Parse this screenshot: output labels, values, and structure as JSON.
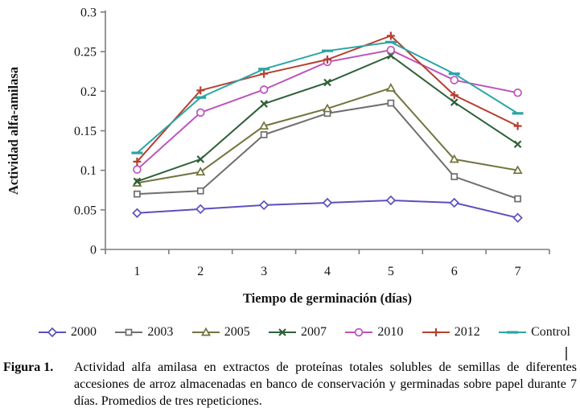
{
  "figure": {
    "caption_label": "Figura 1.",
    "caption_text": "Actividad alfa amilasa en extractos de proteínas totales solubles de semillas de diferentes accesiones de arroz almacenadas en banco de conservación y germinadas sobre papel durante 7 días.  Promedios de tres repeticiones."
  },
  "chart_data": {
    "type": "line",
    "title": "",
    "xlabel": "Tiempo de germinación (días)",
    "ylabel": "Actividad alfa-amilasa",
    "x": [
      "1",
      "2",
      "3",
      "4",
      "5",
      "6",
      "7"
    ],
    "ylim": [
      0,
      0.3
    ],
    "ytick_step": 0.05,
    "ytick_labels": [
      "0",
      "0.05",
      "0.1",
      "0.15",
      "0.2",
      "0.25",
      "0.3"
    ],
    "grid": false,
    "legend_position": "bottom",
    "axis_color": "#7d7d7d",
    "series": [
      {
        "name": "2000",
        "color": "#5b50bd",
        "marker": "diamond",
        "values": [
          0.046,
          0.051,
          0.056,
          0.059,
          0.062,
          0.059,
          0.04
        ]
      },
      {
        "name": "2003",
        "color": "#6e6e6e",
        "marker": "square",
        "values": [
          0.07,
          0.074,
          0.145,
          0.172,
          0.185,
          0.092,
          0.064
        ]
      },
      {
        "name": "2005",
        "color": "#73743f",
        "marker": "triangle",
        "values": [
          0.084,
          0.098,
          0.156,
          0.178,
          0.204,
          0.114,
          0.1
        ]
      },
      {
        "name": "2007",
        "color": "#2f5f38",
        "marker": "xcross",
        "values": [
          0.086,
          0.114,
          0.184,
          0.211,
          0.245,
          0.186,
          0.133
        ]
      },
      {
        "name": "2010",
        "color": "#bd53bd",
        "marker": "circle",
        "values": [
          0.101,
          0.173,
          0.202,
          0.237,
          0.252,
          0.214,
          0.198
        ]
      },
      {
        "name": "2012",
        "color": "#b6402f",
        "marker": "plus",
        "values": [
          0.111,
          0.201,
          0.222,
          0.24,
          0.27,
          0.195,
          0.156
        ]
      },
      {
        "name": "Control",
        "color": "#2aa5a5",
        "marker": "dash",
        "values": [
          0.122,
          0.192,
          0.228,
          0.251,
          0.262,
          0.222,
          0.172
        ]
      }
    ]
  }
}
